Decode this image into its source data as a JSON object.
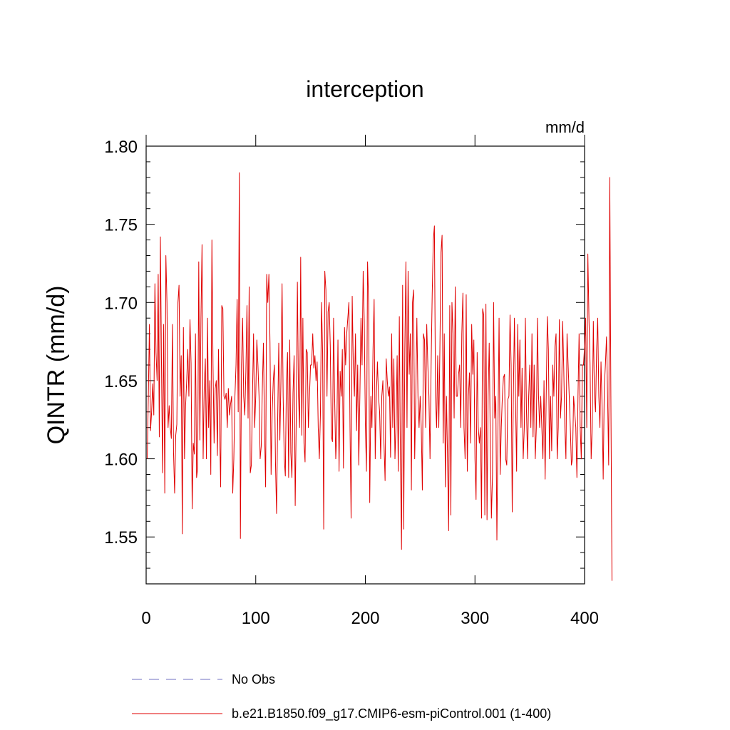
{
  "chart_data": {
    "type": "line",
    "title": "interception",
    "units": "mm/d",
    "ylabel": "QINTR  (mm/d)",
    "xlabel": "",
    "xlim": [
      0,
      400
    ],
    "ylim": [
      1.52,
      1.8
    ],
    "x_ticks": [
      0,
      100,
      200,
      300,
      400
    ],
    "x_tick_labels": [
      "0",
      "100",
      "200",
      "300",
      "400"
    ],
    "y_ticks": [
      1.55,
      1.6,
      1.65,
      1.7,
      1.75,
      1.8
    ],
    "y_tick_labels": [
      "1.55",
      "1.60",
      "1.65",
      "1.70",
      "1.75",
      "1.80"
    ],
    "grid": false,
    "legend": [
      {
        "label": "No Obs",
        "color": "#6f6fc0",
        "style": "dashed"
      },
      {
        "label": "b.e21.B1850.f09_g17.CMIP6-esm-piControl.001 (1-400)",
        "color": "#e00000",
        "style": "solid"
      }
    ],
    "series": [
      {
        "name": "b.e21.B1850.f09_g17.CMIP6-esm-piControl.001 (1-400)",
        "color": "#e00000",
        "x_start": 1,
        "values": [
          1.6,
          1.64,
          1.686,
          1.618,
          1.63,
          1.648,
          1.628,
          1.712,
          1.668,
          1.65,
          1.718,
          1.614,
          1.742,
          1.66,
          1.591,
          1.686,
          1.578,
          1.73,
          1.7,
          1.62,
          1.634,
          1.62,
          1.613,
          1.686,
          1.604,
          1.578,
          1.615,
          1.622,
          1.7,
          1.711,
          1.64,
          1.666,
          1.552,
          1.684,
          1.6,
          1.634,
          1.65,
          1.67,
          1.64,
          1.689,
          1.661,
          1.568,
          1.61,
          1.603,
          1.68,
          1.588,
          1.594,
          1.726,
          1.612,
          1.69,
          1.737,
          1.6,
          1.645,
          1.664,
          1.6,
          1.69,
          1.62,
          1.65,
          1.59,
          1.74,
          1.66,
          1.61,
          1.645,
          1.65,
          1.602,
          1.67,
          1.62,
          1.582,
          1.698,
          1.696,
          1.64,
          1.638,
          1.642,
          1.62,
          1.645,
          1.628,
          1.635,
          1.64,
          1.578,
          1.6,
          1.64,
          1.66,
          1.702,
          1.63,
          1.783,
          1.549,
          1.66,
          1.69,
          1.64,
          1.628,
          1.656,
          1.698,
          1.626,
          1.71,
          1.591,
          1.596,
          1.64,
          1.68,
          1.62,
          1.64,
          1.676,
          1.66,
          1.64,
          1.6,
          1.608,
          1.645,
          1.674,
          1.62,
          1.582,
          1.718,
          1.7,
          1.718,
          1.674,
          1.59,
          1.63,
          1.65,
          1.66,
          1.598,
          1.565,
          1.625,
          1.674,
          1.612,
          1.65,
          1.712,
          1.64,
          1.6,
          1.589,
          1.65,
          1.668,
          1.588,
          1.676,
          1.604,
          1.588,
          1.642,
          1.666,
          1.57,
          1.63,
          1.713,
          1.64,
          1.62,
          1.729,
          1.615,
          1.69,
          1.61,
          1.598,
          1.67,
          1.668,
          1.62,
          1.64,
          1.66,
          1.66,
          1.68,
          1.658,
          1.666,
          1.65,
          1.662,
          1.62,
          1.6,
          1.628,
          1.7,
          1.668,
          1.555,
          1.72,
          1.708,
          1.64,
          1.694,
          1.7,
          1.672,
          1.614,
          1.611,
          1.69,
          1.638,
          1.6,
          1.62,
          1.676,
          1.592,
          1.656,
          1.64,
          1.67,
          1.594,
          1.684,
          1.66,
          1.68,
          1.69,
          1.7,
          1.62,
          1.562,
          1.704,
          1.66,
          1.64,
          1.68,
          1.618,
          1.66,
          1.596,
          1.64,
          1.69,
          1.66,
          1.72,
          1.688,
          1.622,
          1.592,
          1.726,
          1.7,
          1.572,
          1.64,
          1.62,
          1.67,
          1.702,
          1.6,
          1.64,
          1.662,
          1.64,
          1.63,
          1.6,
          1.64,
          1.65,
          1.61,
          1.586,
          1.664,
          1.65,
          1.64,
          1.646,
          1.601,
          1.68,
          1.62,
          1.664,
          1.6,
          1.622,
          1.666,
          1.592,
          1.691,
          1.6,
          1.542,
          1.711,
          1.555,
          1.67,
          1.726,
          1.62,
          1.72,
          1.654,
          1.68,
          1.58,
          1.7,
          1.708,
          1.6,
          1.64,
          1.69,
          1.64,
          1.62,
          1.64,
          1.62,
          1.58,
          1.68,
          1.676,
          1.62,
          1.686,
          1.66,
          1.64,
          1.6,
          1.66,
          1.706,
          1.74,
          1.749,
          1.64,
          1.62,
          1.666,
          1.62,
          1.67,
          1.732,
          1.743,
          1.61,
          1.68,
          1.582,
          1.64,
          1.6,
          1.554,
          1.698,
          1.564,
          1.7,
          1.68,
          1.626,
          1.71,
          1.64,
          1.64,
          1.654,
          1.66,
          1.62,
          1.68,
          1.706,
          1.62,
          1.6,
          1.705,
          1.592,
          1.64,
          1.655,
          1.61,
          1.686,
          1.654,
          1.676,
          1.6,
          1.574,
          1.668,
          1.62,
          1.61,
          1.62,
          1.562,
          1.696,
          1.692,
          1.564,
          1.699,
          1.561,
          1.64,
          1.674,
          1.61,
          1.562,
          1.59,
          1.7,
          1.626,
          1.64,
          1.548,
          1.62,
          1.69,
          1.59,
          1.62,
          1.64,
          1.652,
          1.654,
          1.6,
          1.596,
          1.638,
          1.64,
          1.692,
          1.66,
          1.566,
          1.64,
          1.69,
          1.638,
          1.592,
          1.686,
          1.64,
          1.676,
          1.62,
          1.658,
          1.6,
          1.62,
          1.69,
          1.63,
          1.6,
          1.64,
          1.66,
          1.62,
          1.68,
          1.614,
          1.66,
          1.6,
          1.62,
          1.69,
          1.64,
          1.62,
          1.64,
          1.62,
          1.6,
          1.65,
          1.587,
          1.64,
          1.691,
          1.67,
          1.6,
          1.64,
          1.605,
          1.66,
          1.64,
          1.672,
          1.68,
          1.6,
          1.62,
          1.689,
          1.626,
          1.64,
          1.688,
          1.658,
          1.62,
          1.6,
          1.68,
          1.66,
          1.64,
          1.62,
          1.596,
          1.6,
          1.64,
          1.63,
          1.62,
          1.588,
          1.64,
          1.68,
          1.62,
          1.6,
          1.66,
          1.66,
          1.672,
          1.69,
          1.62,
          1.731,
          1.69,
          1.661,
          1.6,
          1.62,
          1.688,
          1.64,
          1.63,
          1.67,
          1.69,
          1.64,
          1.62,
          1.662,
          1.632,
          1.587,
          1.646,
          1.66,
          1.678,
          1.64,
          1.596,
          1.78,
          1.64,
          1.522
        ]
      }
    ]
  }
}
